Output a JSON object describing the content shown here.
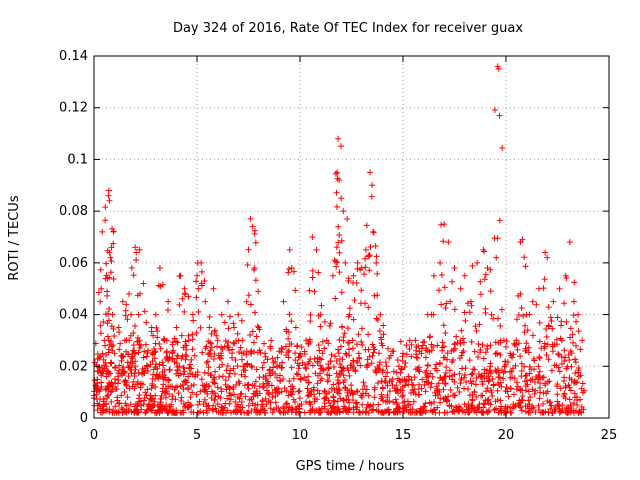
{
  "chart_data": {
    "type": "scatter",
    "title": "Day 324 of 2016, Rate Of TEC Index for receiver guax",
    "xlabel": "GPS time / hours",
    "ylabel": "ROTI / TECUs",
    "xlim": [
      0,
      25
    ],
    "ylim": [
      0,
      0.14
    ],
    "x_ticks": [
      0,
      5,
      10,
      15,
      20,
      25
    ],
    "y_ticks": [
      0,
      0.02,
      0.04,
      0.06,
      0.08,
      0.1,
      0.12,
      0.14
    ],
    "x_tick_labels": [
      "0",
      "5",
      "10",
      "15",
      "20",
      "25"
    ],
    "y_tick_labels": [
      "0",
      "0.02",
      "0.04",
      "0.06",
      "0.08",
      "0.1",
      "0.12",
      "0.14"
    ],
    "grid": true,
    "marker": "+",
    "color": "#ff0000",
    "series": [
      {
        "name": "ROTI",
        "points": [
          [
            0.1,
            0.012
          ],
          [
            0.2,
            0.018
          ],
          [
            0.3,
            0.045
          ],
          [
            0.35,
            0.05
          ],
          [
            0.4,
            0.072
          ],
          [
            0.5,
            0.03
          ],
          [
            0.6,
            0.02
          ],
          [
            0.7,
            0.086
          ],
          [
            0.72,
            0.088
          ],
          [
            0.75,
            0.084
          ],
          [
            0.8,
            0.062
          ],
          [
            0.85,
            0.066
          ],
          [
            0.9,
            0.04
          ],
          [
            1.0,
            0.025
          ],
          [
            1.2,
            0.035
          ],
          [
            1.4,
            0.045
          ],
          [
            1.5,
            0.03
          ],
          [
            1.7,
            0.048
          ],
          [
            1.8,
            0.04
          ],
          [
            2.0,
            0.066
          ],
          [
            2.05,
            0.064
          ],
          [
            2.2,
            0.03
          ],
          [
            2.4,
            0.052
          ],
          [
            2.6,
            0.02
          ],
          [
            2.8,
            0.035
          ],
          [
            3.0,
            0.04
          ],
          [
            3.2,
            0.058
          ],
          [
            3.4,
            0.03
          ],
          [
            3.6,
            0.045
          ],
          [
            3.8,
            0.025
          ],
          [
            4.0,
            0.035
          ],
          [
            4.2,
            0.055
          ],
          [
            4.4,
            0.05
          ],
          [
            4.6,
            0.03
          ],
          [
            4.8,
            0.04
          ],
          [
            5.0,
            0.055
          ],
          [
            5.2,
            0.06
          ],
          [
            5.4,
            0.045
          ],
          [
            5.6,
            0.035
          ],
          [
            5.8,
            0.05
          ],
          [
            6.0,
            0.03
          ],
          [
            6.2,
            0.04
          ],
          [
            6.5,
            0.045
          ],
          [
            6.8,
            0.035
          ],
          [
            7.0,
            0.04
          ],
          [
            7.2,
            0.03
          ],
          [
            7.4,
            0.045
          ],
          [
            7.6,
            0.077
          ],
          [
            7.7,
            0.074
          ],
          [
            7.8,
            0.058
          ],
          [
            8.0,
            0.035
          ],
          [
            8.3,
            0.025
          ],
          [
            8.6,
            0.03
          ],
          [
            8.9,
            0.02
          ],
          [
            9.2,
            0.045
          ],
          [
            9.5,
            0.065
          ],
          [
            9.6,
            0.058
          ],
          [
            9.8,
            0.035
          ],
          [
            10.0,
            0.025
          ],
          [
            10.3,
            0.03
          ],
          [
            10.6,
            0.07
          ],
          [
            10.8,
            0.065
          ],
          [
            11.0,
            0.04
          ],
          [
            11.3,
            0.03
          ],
          [
            11.6,
            0.055
          ],
          [
            11.8,
            0.095
          ],
          [
            11.85,
            0.108
          ],
          [
            11.9,
            0.092
          ],
          [
            12.0,
            0.085
          ],
          [
            12.1,
            0.08
          ],
          [
            12.2,
            0.06
          ],
          [
            12.4,
            0.04
          ],
          [
            12.6,
            0.055
          ],
          [
            12.8,
            0.06
          ],
          [
            13.0,
            0.058
          ],
          [
            13.2,
            0.065
          ],
          [
            13.4,
            0.095
          ],
          [
            13.5,
            0.09
          ],
          [
            13.55,
            0.072
          ],
          [
            13.7,
            0.06
          ],
          [
            13.9,
            0.04
          ],
          [
            14.2,
            0.02
          ],
          [
            14.5,
            0.015
          ],
          [
            14.8,
            0.02
          ],
          [
            15.0,
            0.025
          ],
          [
            15.3,
            0.015
          ],
          [
            15.6,
            0.03
          ],
          [
            15.9,
            0.025
          ],
          [
            16.2,
            0.04
          ],
          [
            16.5,
            0.055
          ],
          [
            16.8,
            0.06
          ],
          [
            17.0,
            0.075
          ],
          [
            17.2,
            0.068
          ],
          [
            17.5,
            0.058
          ],
          [
            17.8,
            0.05
          ],
          [
            18.0,
            0.055
          ],
          [
            18.3,
            0.045
          ],
          [
            18.6,
            0.06
          ],
          [
            18.9,
            0.065
          ],
          [
            19.1,
            0.058
          ],
          [
            19.3,
            0.04
          ],
          [
            19.6,
            0.136
          ],
          [
            19.65,
            0.135
          ],
          [
            19.9,
            0.03
          ],
          [
            20.2,
            0.025
          ],
          [
            20.5,
            0.03
          ],
          [
            20.7,
            0.068
          ],
          [
            20.8,
            0.069
          ],
          [
            21.0,
            0.04
          ],
          [
            21.3,
            0.045
          ],
          [
            21.6,
            0.05
          ],
          [
            21.9,
            0.064
          ],
          [
            22.0,
            0.062
          ],
          [
            22.3,
            0.045
          ],
          [
            22.6,
            0.05
          ],
          [
            22.9,
            0.055
          ],
          [
            23.1,
            0.068
          ],
          [
            23.3,
            0.045
          ],
          [
            23.5,
            0.04
          ],
          [
            23.7,
            0.03
          ]
        ],
        "dense_band": {
          "x_range": [
            0,
            23.8
          ],
          "y_range": [
            0.002,
            0.03
          ]
        }
      }
    ]
  }
}
